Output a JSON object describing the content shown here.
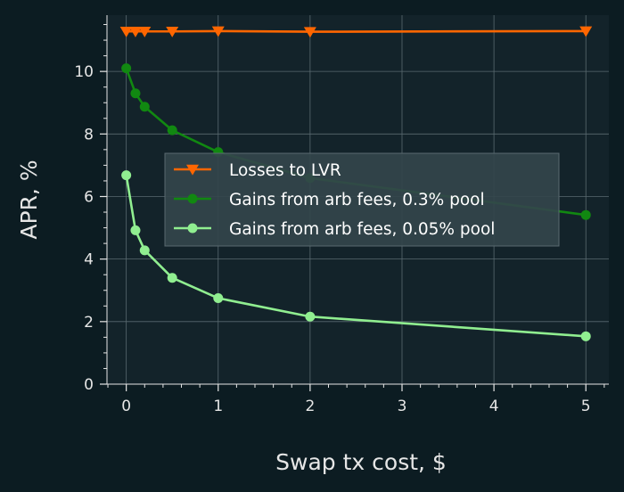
{
  "chart_data": {
    "type": "line",
    "title": "",
    "xlabel": "Swap tx cost, $",
    "ylabel": "APR, %",
    "xlim": [
      -0.21,
      5.25
    ],
    "ylim": [
      0,
      11.8
    ],
    "xticks": [
      0,
      1,
      2,
      3,
      4,
      5
    ],
    "yticks": [
      0,
      2,
      4,
      6,
      8,
      10
    ],
    "grid": true,
    "legend_position": "center-left",
    "series": [
      {
        "name": "Losses to LVR",
        "color": "#ff6600",
        "marker": "triangle-down",
        "x": [
          0,
          0.1,
          0.2,
          0.5,
          1,
          2,
          5
        ],
        "y": [
          11.28,
          11.28,
          11.28,
          11.28,
          11.29,
          11.27,
          11.29
        ]
      },
      {
        "name": "Gains from arb fees, 0.3% pool",
        "color": "#118811",
        "marker": "circle",
        "x": [
          0,
          0.1,
          0.2,
          0.5,
          1,
          2,
          5
        ],
        "y": [
          10.1,
          9.3,
          8.87,
          8.12,
          7.42,
          6.59,
          5.41
        ]
      },
      {
        "name": "Gains from arb fees, 0.05% pool",
        "color": "#90ee90",
        "marker": "circle",
        "x": [
          0,
          0.1,
          0.2,
          0.5,
          1,
          2,
          5
        ],
        "y": [
          6.68,
          4.92,
          4.28,
          3.4,
          2.75,
          2.16,
          1.53
        ]
      }
    ]
  },
  "colors": {
    "background": "#0c1c22",
    "plot_area": "#13232a",
    "grid": "#5a6a70",
    "axis": "#e6e6e6"
  }
}
